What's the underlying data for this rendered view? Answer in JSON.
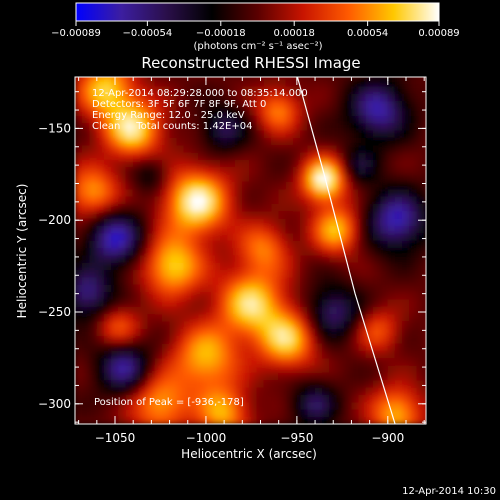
{
  "chart_data": {
    "type": "heatmap",
    "title": "Reconstructed RHESSI Image",
    "xlabel": "Heliocentric X (arcsec)",
    "ylabel": "Heliocentric Y (arcsec)",
    "xlim": [
      -1072,
      -879
    ],
    "ylim": [
      -311,
      -122
    ],
    "x_ticks": [
      {
        "value": -1050,
        "label": "−1050"
      },
      {
        "value": -1000,
        "label": "−1000"
      },
      {
        "value": -950,
        "label": "−950"
      },
      {
        "value": -900,
        "label": "−900"
      }
    ],
    "y_ticks": [
      {
        "value": -150,
        "label": "−150"
      },
      {
        "value": -200,
        "label": "−200"
      },
      {
        "value": -250,
        "label": "−250"
      },
      {
        "value": -300,
        "label": "−300"
      }
    ],
    "colorbar": {
      "min": -0.00089,
      "max": 0.00089,
      "tick_values": [
        -0.00089,
        -0.00054,
        -0.00018,
        0.00018,
        0.00054,
        0.00089
      ],
      "tick_labels": [
        "−0.00089",
        "−0.00054",
        "−0.00018",
        "0.00018",
        "0.00054",
        "0.00089"
      ],
      "unit_label": "(photons cm⁻² s⁻¹ asec⁻²)",
      "colormap": [
        "#0000ff",
        "#3c1ea0",
        "#2a0f4a",
        "#000000",
        "#5a0000",
        "#c81400",
        "#ff5a00",
        "#ffc800",
        "#ffffff"
      ]
    },
    "info_lines": [
      "12-Apr-2014 08:29:28.000 to 08:35:14.000",
      "Detectors: 3F 5F 6F 7F 8F 9F, Att 0",
      "Energy Range: 12.0 - 25.0 keV",
      "Clean     Total counts: 1.42E+04"
    ],
    "peak_label": "Position of Peak = [-936,-178]",
    "peak": {
      "x": -936,
      "y": -178
    },
    "limb_curve": [
      [
        -949.7,
        -122
      ],
      [
        -935,
        -175
      ],
      [
        -918,
        -240
      ],
      [
        -896,
        -311
      ]
    ],
    "grid": false
  },
  "footer_timestamp": "12-Apr-2014 10:30"
}
